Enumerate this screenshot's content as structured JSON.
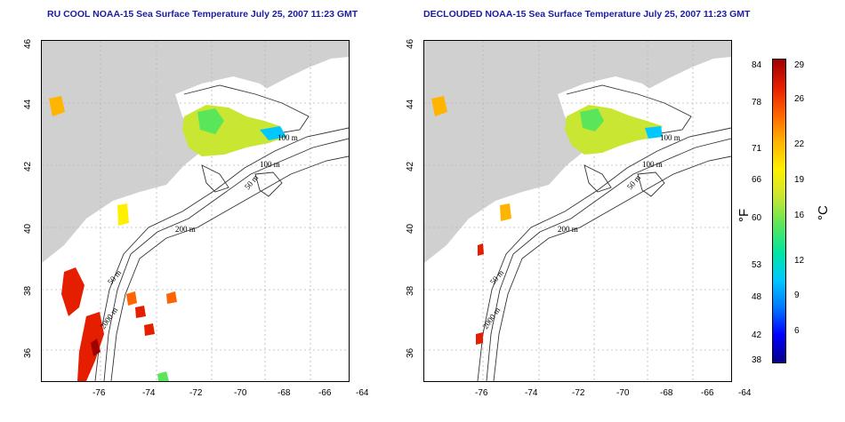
{
  "left_panel": {
    "title": "RU COOL NOAA-15 Sea Surface Temperature July 25, 2007 11:23 GMT",
    "contour_labels": [
      "100 m",
      "100 m",
      "50 m",
      "200 m",
      "50 m",
      "2000 m"
    ]
  },
  "right_panel": {
    "title": "DECLOUDED NOAA-15 Sea Surface Temperature July 25, 2007 11:23 GMT",
    "contour_labels": [
      "100 m",
      "100 m",
      "50 m",
      "200 m",
      "50 m",
      "2000 m"
    ]
  },
  "axes": {
    "x_ticks": [
      "-76",
      "-74",
      "-72",
      "-70",
      "-68",
      "-66",
      "-64"
    ],
    "y_ticks": [
      "36",
      "38",
      "40",
      "42",
      "44",
      "46"
    ]
  },
  "colorbar": {
    "fahrenheit_ticks": [
      "84",
      "78",
      "71",
      "66",
      "60",
      "53",
      "48",
      "42",
      "38"
    ],
    "celsius_ticks": [
      "29",
      "26",
      "22",
      "19",
      "16",
      "12",
      "9",
      "6"
    ],
    "fahrenheit_unit": "°F",
    "celsius_unit": "°C",
    "colors": [
      "#08008a",
      "#0000ff",
      "#0078ff",
      "#00c8ff",
      "#00e6a0",
      "#5ae65a",
      "#c8e632",
      "#fff000",
      "#ffb400",
      "#ff6400",
      "#e61e00",
      "#a00000"
    ]
  },
  "colors": {
    "land": "#d0d0d0",
    "ocean": "#ffffff",
    "contour": "#333333",
    "title": "#1a1aa6",
    "grid": "#b8b8b8"
  }
}
